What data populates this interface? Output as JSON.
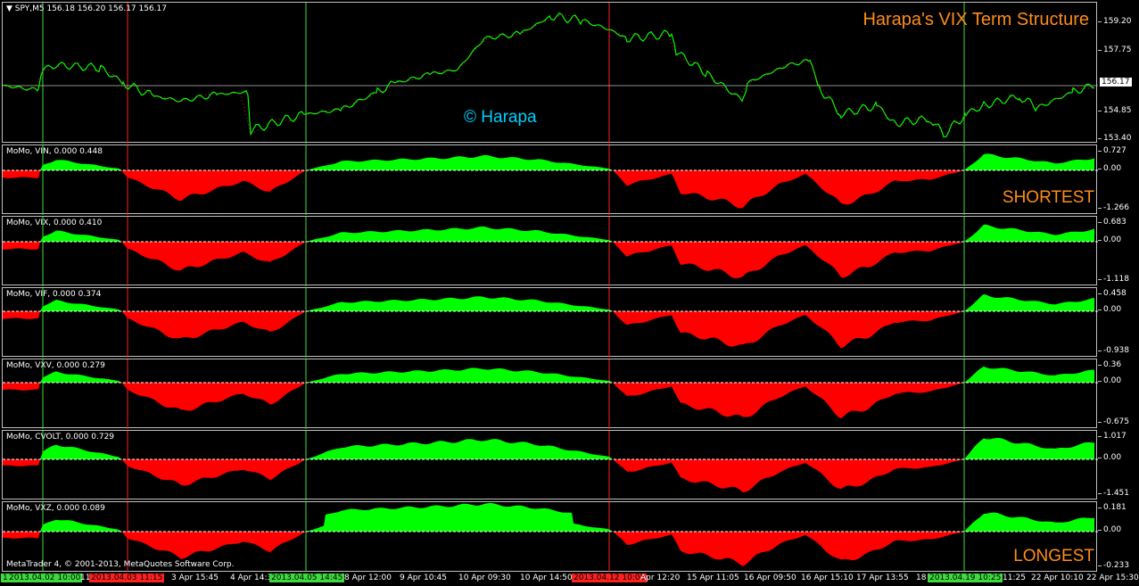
{
  "main": {
    "label": "SPY,M5  156.18 156.20 156.17 156.17",
    "title": "Harapa's VIX Term Structure",
    "copyright": "© Harapa",
    "price_ticks": [
      "159.20",
      "157.75",
      "156.17",
      "154.85",
      "153.40"
    ],
    "current_price": "156.17"
  },
  "indicators": [
    {
      "label": "MoMo, VIN, 0.000 0.448",
      "ticks": [
        "0.727",
        "0.00",
        "-1.266"
      ],
      "side": "SHORTEST"
    },
    {
      "label": "MoMo, VIX, 0.000 0.410",
      "ticks": [
        "0.683",
        "0.00",
        "-1.118"
      ],
      "side": ""
    },
    {
      "label": "MoMo, VIF, 0.000 0.374",
      "ticks": [
        "0.458",
        "0.00",
        "-0.938"
      ],
      "side": ""
    },
    {
      "label": "MoMo, VXV, 0.000 0.279",
      "ticks": [
        "0.36",
        "0.00",
        "-0.675"
      ],
      "side": ""
    },
    {
      "label": "MoMo, CVOLT, 0.000 0.729",
      "ticks": [
        "1.017",
        "0.00",
        "-1.451"
      ],
      "side": ""
    },
    {
      "label": "MoMo, VXZ, 0.000 0.089",
      "ticks": [
        "0.181",
        "0.00",
        "-0.233"
      ],
      "side": "LONGEST"
    }
  ],
  "footer": "MetaTrader 4, © 2001-2013, MetaQuotes Software Corp.",
  "time_labels": [
    {
      "text": "1",
      "style": "green"
    },
    {
      "text": "2013.04.02 10:00",
      "style": "green"
    },
    {
      "text": "11",
      "style": "plain"
    },
    {
      "text": "2013.04.03 11:15",
      "style": "red"
    },
    {
      "text": "3 Apr 15:45",
      "style": "plain"
    },
    {
      "text": "4 Apr 14:3",
      "style": "plain"
    },
    {
      "text": "2013.04.05 14:45",
      "style": "green"
    },
    {
      "text": "8 Apr 12:00",
      "style": "plain"
    },
    {
      "text": "9 Apr 10:45",
      "style": "plain"
    },
    {
      "text": "10 Apr 09:30",
      "style": "plain"
    },
    {
      "text": "10 Apr 14:50",
      "style": "plain"
    },
    {
      "text": "2013.04.12 10:05",
      "style": "red"
    },
    {
      "text": "Apr 12:20",
      "style": "plain"
    },
    {
      "text": "15 Apr 11:05",
      "style": "plain"
    },
    {
      "text": "16 Apr 09:50",
      "style": "plain"
    },
    {
      "text": "16 Apr 15:10",
      "style": "plain"
    },
    {
      "text": "17 Apr 13:55",
      "style": "plain"
    },
    {
      "text": "18",
      "style": "plain"
    },
    {
      "text": "2013.04.19 10:25",
      "style": "green"
    },
    {
      "text": "11:25",
      "style": "plain"
    },
    {
      "text": "22 Apr 10:10",
      "style": "plain"
    },
    {
      "text": "22 Apr 15:30",
      "style": "plain"
    }
  ],
  "colors": {
    "bull": "#00ff00",
    "bear": "#ff0000",
    "green_line": "#3ddc3d",
    "red_line": "#ff2020"
  }
}
